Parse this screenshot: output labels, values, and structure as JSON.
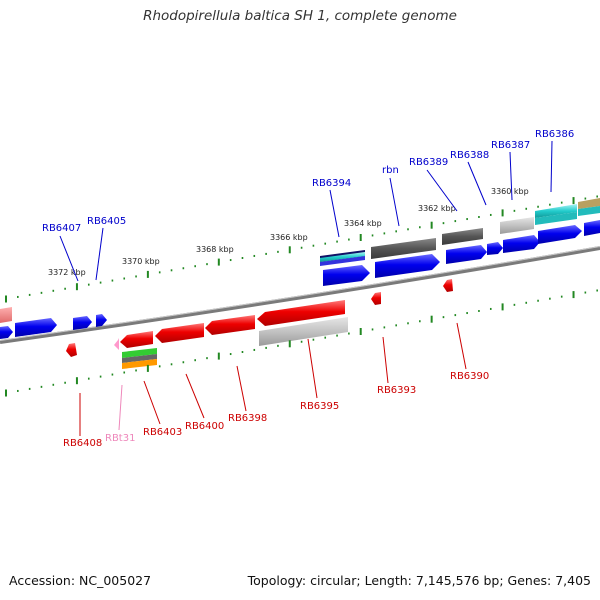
{
  "title": "Rhodopirellula baltica SH 1, complete genome",
  "footer": {
    "accession": "Accession: NC_005027",
    "topology": "Topology: circular; Length: 7,145,576 bp; Genes: 7,405"
  },
  "colors": {
    "forward_gene": "#0000ee",
    "reverse_gene": "#ee0000",
    "forward_label": "#0000cc",
    "reverse_label": "#cc0000",
    "rna_label": "#ee88bb",
    "backbone": "#808080",
    "tick": "#228822"
  },
  "scale_labels": [
    "3372 kbp",
    "3370 kbp",
    "3368 kbp",
    "3366 kbp",
    "3364 kbp",
    "3362 kbp",
    "3360 kbp"
  ],
  "forward_labels": [
    "RB6407",
    "RB6405",
    "RB6394",
    "rbn",
    "RB6389",
    "RB6388",
    "RB6387",
    "RB6386"
  ],
  "reverse_labels": [
    "RB6408",
    "RBt31",
    "RB6403",
    "RB6400",
    "RB6398",
    "RB6395",
    "RB6393",
    "RB6390"
  ]
}
